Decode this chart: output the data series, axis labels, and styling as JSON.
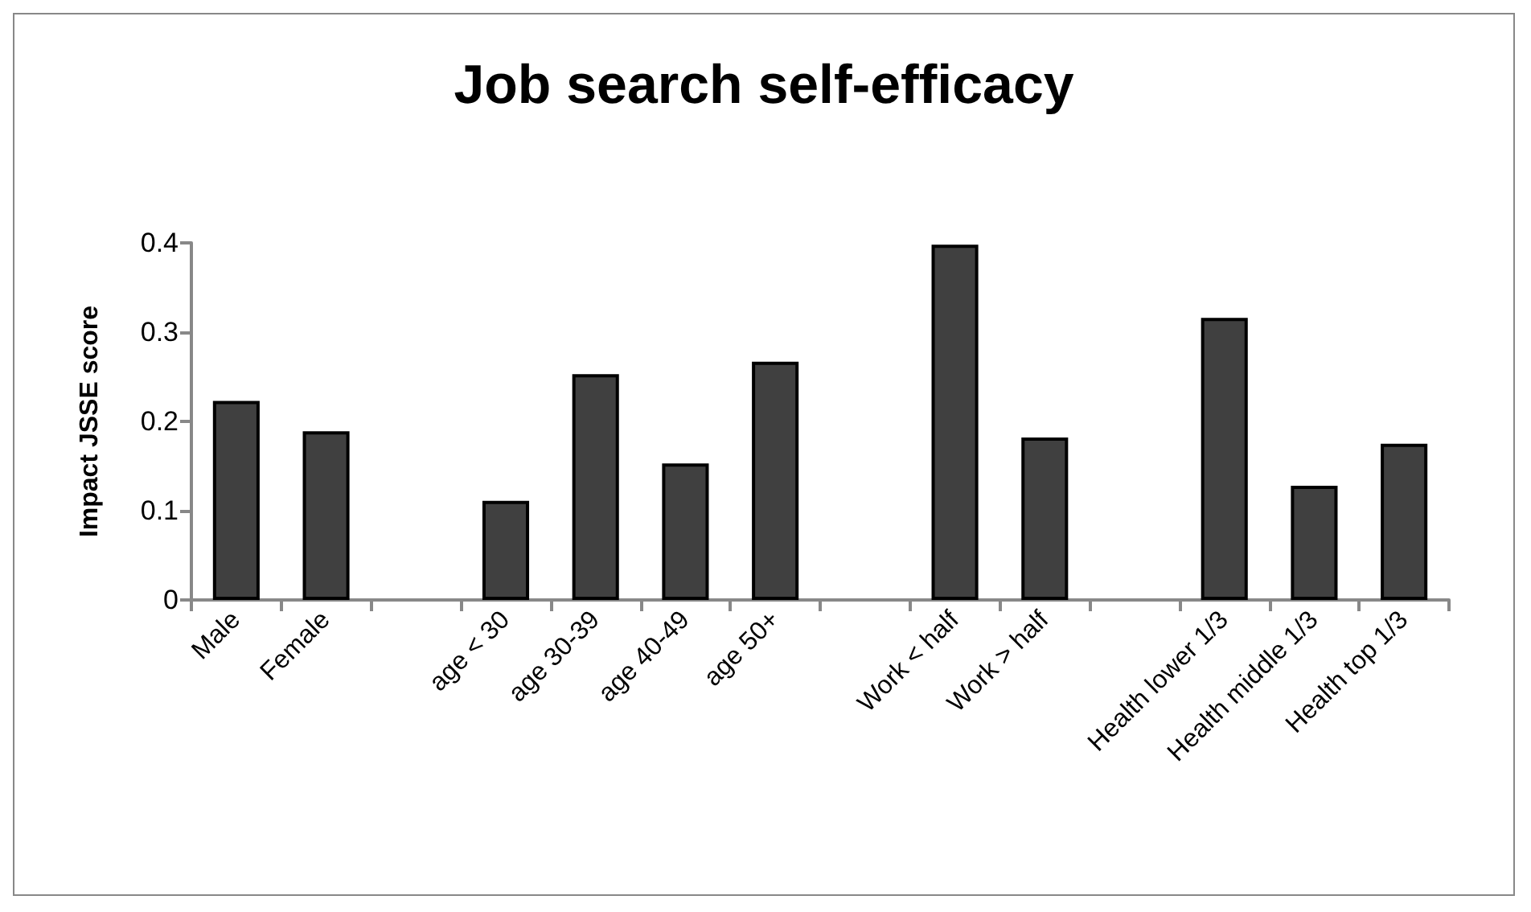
{
  "chart_data": {
    "type": "bar",
    "title": "Job search self-efficacy",
    "ylabel": "Impact JSSE score",
    "categories": [
      "Male",
      "Female",
      null,
      "age < 30",
      "age 30-39",
      "age 40-49",
      "age 50+",
      null,
      "Work < half",
      "Work > half",
      null,
      "Health lower 1/3",
      "Health middle 1/3",
      "Health top 1/3"
    ],
    "values": [
      0.223,
      0.189,
      null,
      0.111,
      0.253,
      0.153,
      0.267,
      null,
      0.398,
      0.182,
      null,
      0.316,
      0.128,
      0.175
    ],
    "color": "#404040",
    "ylim": [
      0,
      0.4
    ],
    "yticks": [
      0,
      0.1,
      0.2,
      0.3,
      0.4
    ],
    "grid": false
  }
}
